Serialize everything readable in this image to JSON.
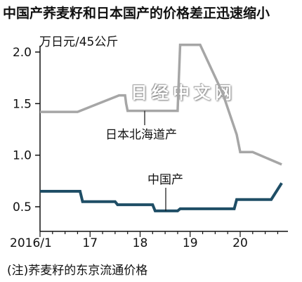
{
  "title": "中国产荞麦籽和日本国产的价格差正迅速缩小",
  "unit_label": "万日元/45公斤",
  "note": "(注)荞麦籽的东京流通价格",
  "watermark": "日经中文网",
  "chart_data": {
    "type": "line",
    "title": "中国产荞麦籽和日本国产的价格差正迅速缩小",
    "ylabel": "万日元/45公斤",
    "ylim": [
      0.3,
      2.2
    ],
    "xlim": [
      2016.0,
      2020.95
    ],
    "y_ticks": [
      0.5,
      1.0,
      1.5,
      2.0
    ],
    "y_tick_labels": [
      "0.5",
      "1.0",
      "1.5",
      "2.0"
    ],
    "x_ticks": [
      2016.0,
      2017.0,
      2018.0,
      2019.0,
      2020.0
    ],
    "x_tick_labels": [
      "2016/1",
      "17",
      "18",
      "19",
      "20"
    ],
    "grid": false,
    "series": [
      {
        "name": "日本北海道产",
        "color": "#a6a6a6",
        "points": [
          [
            2016.0,
            1.42
          ],
          [
            2016.75,
            1.42
          ],
          [
            2017.58,
            1.58
          ],
          [
            2017.7,
            1.58
          ],
          [
            2017.72,
            1.5
          ],
          [
            2017.75,
            1.43
          ],
          [
            2018.75,
            1.43
          ],
          [
            2018.8,
            2.07
          ],
          [
            2019.2,
            2.07
          ],
          [
            2019.65,
            1.6
          ],
          [
            2019.93,
            1.2
          ],
          [
            2020.0,
            1.03
          ],
          [
            2020.25,
            1.03
          ],
          [
            2020.83,
            0.91
          ]
        ]
      },
      {
        "name": "中国产",
        "color": "#1f4e66",
        "points": [
          [
            2016.0,
            0.65
          ],
          [
            2016.8,
            0.65
          ],
          [
            2016.85,
            0.55
          ],
          [
            2017.5,
            0.55
          ],
          [
            2017.55,
            0.52
          ],
          [
            2018.25,
            0.52
          ],
          [
            2018.3,
            0.46
          ],
          [
            2018.75,
            0.46
          ],
          [
            2018.8,
            0.48
          ],
          [
            2019.88,
            0.48
          ],
          [
            2019.93,
            0.57
          ],
          [
            2020.62,
            0.57
          ],
          [
            2020.83,
            0.73
          ]
        ]
      }
    ]
  }
}
